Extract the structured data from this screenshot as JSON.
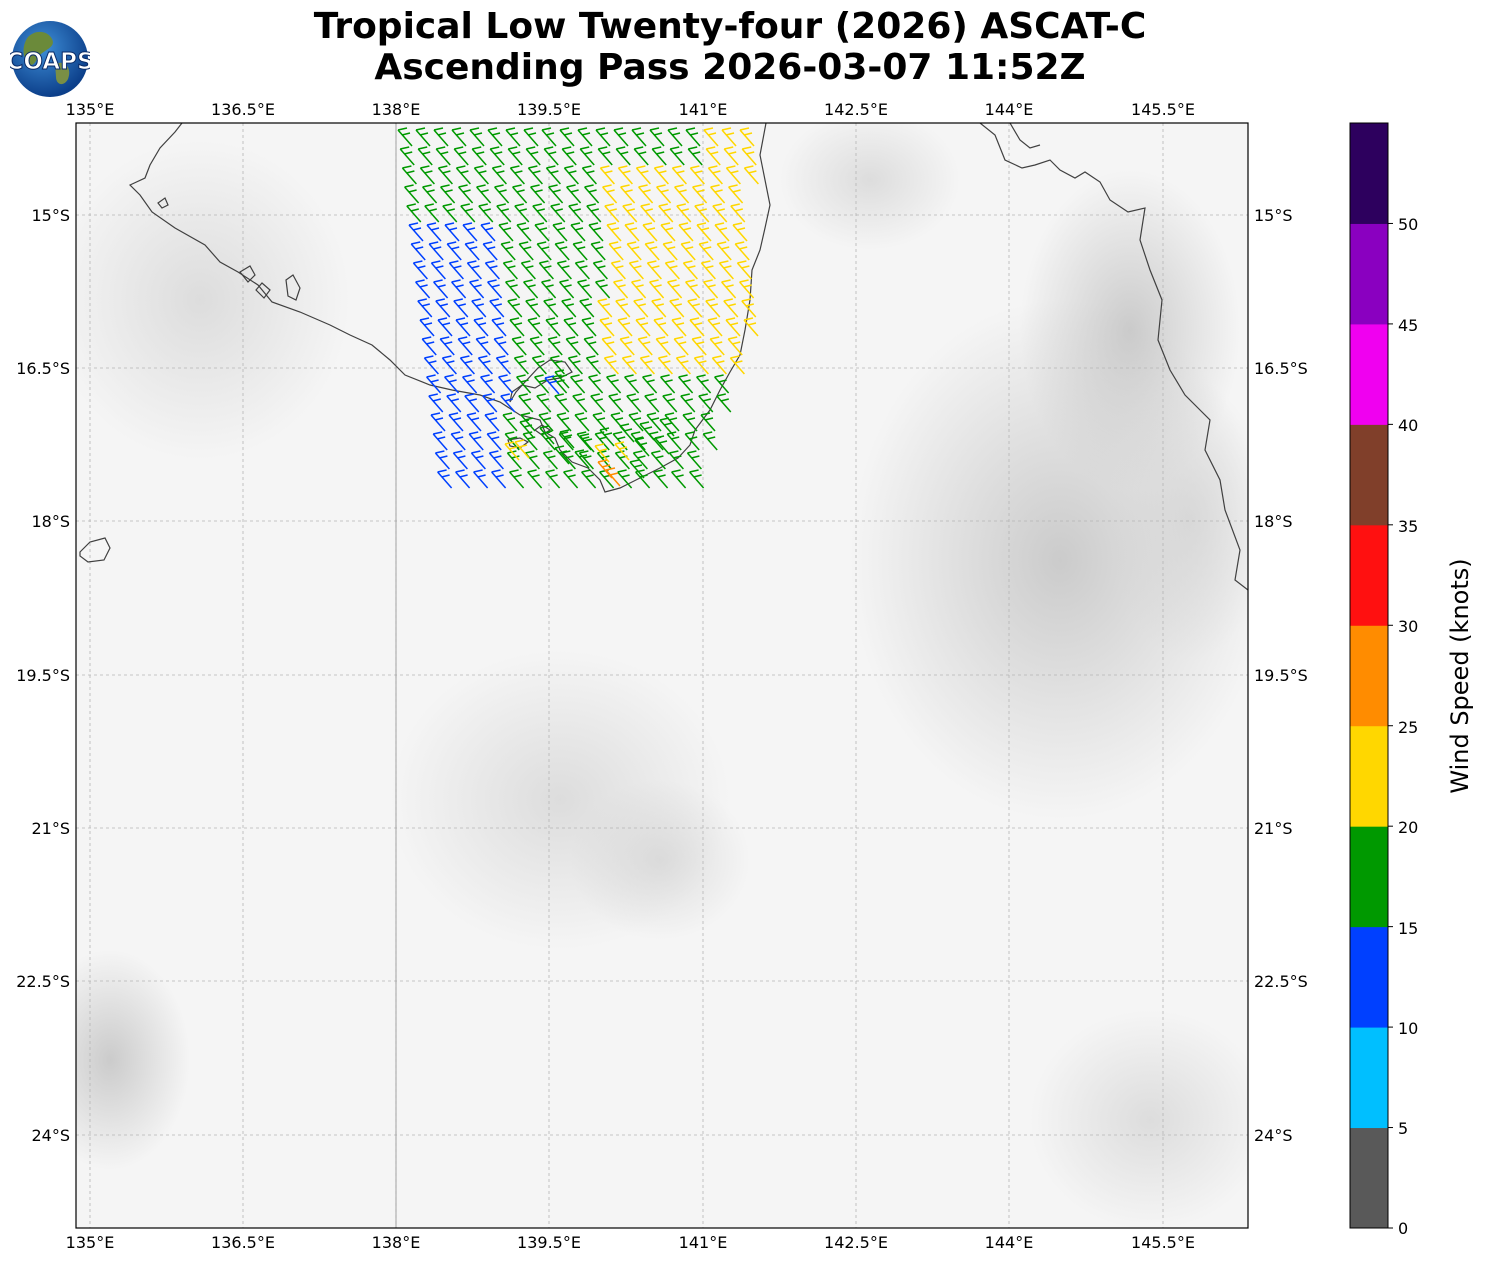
{
  "title": {
    "line1": "Tropical Low Twenty-four (2026) ASCAT-C",
    "line2": "Ascending Pass 2026-03-07 11:52Z"
  },
  "logo": {
    "text": "COAPS"
  },
  "map": {
    "lon_range": [
      134.93,
      146.4
    ],
    "lat_range": [
      -25.3,
      -14.1
    ],
    "lon_ticks": [
      "135°E",
      "136.5°E",
      "138°E",
      "139.5°E",
      "141°E",
      "142.5°E",
      "144°E",
      "145.5°E"
    ],
    "lat_ticks": [
      "15°S",
      "16.5°S",
      "18°S",
      "19.5°S",
      "21°S",
      "22.5°S",
      "24°S"
    ],
    "gridlines": true
  },
  "colorbar": {
    "label": "Wind Speed (knots)",
    "ticks": [
      "0",
      "5",
      "10",
      "15",
      "20",
      "25",
      "30",
      "35",
      "40",
      "45",
      "50"
    ],
    "colors": [
      "#595959",
      "#00bfff",
      "#0040ff",
      "#009900",
      "#ffd700",
      "#ff8c00",
      "#ff1010",
      "#803f2a",
      "#f000f0",
      "#8a00c0",
      "#2d005e"
    ]
  },
  "wind_speed_colors": {
    "blue": "#0040ff",
    "green": "#009900",
    "yellow": "#ffd700",
    "orange": "#ff8c00"
  }
}
